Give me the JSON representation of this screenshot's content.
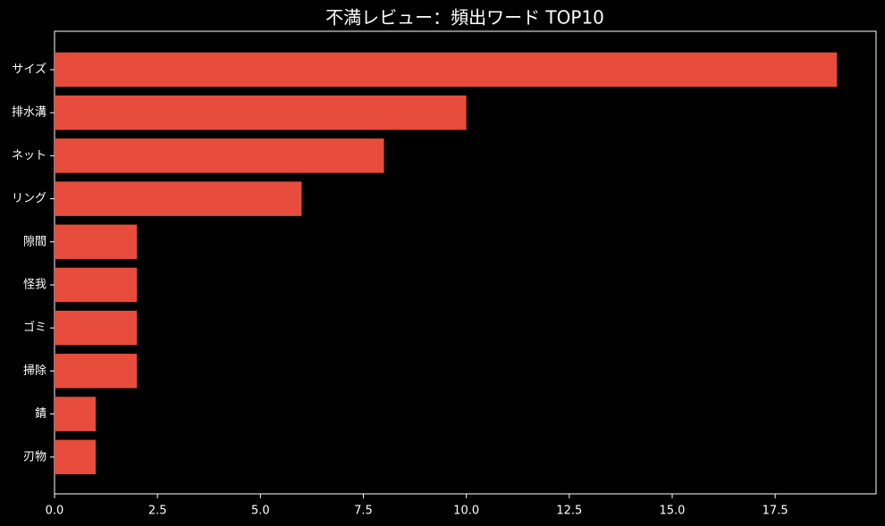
{
  "chart_data": {
    "type": "barh",
    "title": "不満レビュー：頻出ワード TOP10",
    "categories": [
      "サイズ",
      "排水溝",
      "ネット",
      "リング",
      "隙間",
      "怪我",
      "ゴミ",
      "掃除",
      "錆",
      "刃物"
    ],
    "values": [
      19,
      10,
      8,
      6,
      2,
      2,
      2,
      2,
      1,
      1
    ],
    "color": "#e74c3c",
    "xlim": [
      0,
      19.95
    ],
    "xticks": [
      {
        "value": 0,
        "label": "0.0"
      },
      2.5,
      {
        "value": 5,
        "label": "5.0"
      },
      7.5,
      {
        "value": 10,
        "label": "10.0"
      },
      12.5,
      {
        "value": 15,
        "label": "15.0"
      },
      17.5
    ],
    "grid": false
  }
}
